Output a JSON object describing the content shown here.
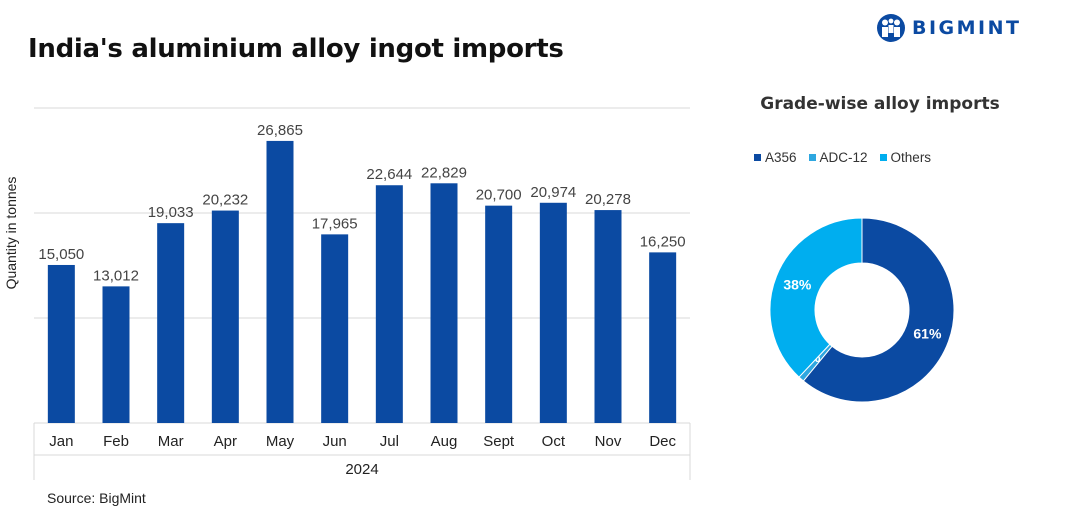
{
  "title": "India's aluminium alloy ingot imports",
  "brand": {
    "name": "BIGMINT"
  },
  "source": "Source: BigMint",
  "colors": {
    "primary": "#0b4aa2",
    "light": "#00aeef",
    "mid": "#2ea7e0",
    "grid": "#d9d9d9"
  },
  "chart_data": [
    {
      "type": "bar",
      "title": "",
      "xlabel": "2024",
      "ylabel": "Quantity in tonnes",
      "categories": [
        "Jan",
        "Feb",
        "Mar",
        "Apr",
        "May",
        "Jun",
        "Jul",
        "Aug",
        "Sept",
        "Oct",
        "Nov",
        "Dec"
      ],
      "values": [
        15050,
        13012,
        19033,
        20232,
        26865,
        17965,
        22644,
        22829,
        20700,
        20974,
        20278,
        16250
      ],
      "data_labels": [
        "15,050",
        "13,012",
        "19,033",
        "20,232",
        "26,865",
        "17,965",
        "22,644",
        "22,829",
        "20,700",
        "20,974",
        "20,278",
        "16,250"
      ],
      "ylim": [
        0,
        30000
      ],
      "gridlines": [
        0,
        10000,
        20000,
        30000
      ],
      "grid": true,
      "legend": "none"
    },
    {
      "type": "pie",
      "title": "Grade-wise alloy imports",
      "series": [
        {
          "name": "A356",
          "value": 61,
          "label": "61%"
        },
        {
          "name": "ADC-12",
          "value": 1,
          "label": "1%"
        },
        {
          "name": "Others",
          "value": 38,
          "label": "38%"
        }
      ],
      "legend": "top"
    }
  ]
}
